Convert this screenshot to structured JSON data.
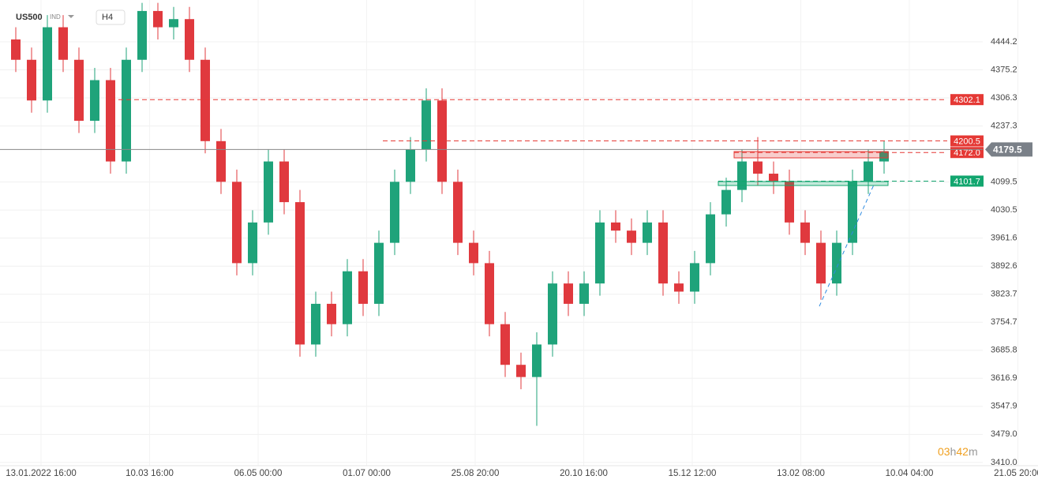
{
  "header": {
    "symbol": "US500",
    "market": "IND",
    "interval": "H4"
  },
  "chart_data": {
    "type": "candlestick",
    "up_color": "#1fa37a",
    "down_color": "#e0393e",
    "open": [
      4450,
      4400,
      4300,
      4480,
      4400,
      4250,
      4350,
      4150,
      4400,
      4520,
      4480,
      4500,
      4400,
      4200,
      4100,
      3900,
      4000,
      4150,
      4050,
      3700,
      3800,
      3750,
      3880,
      3800,
      3950,
      4100,
      4180,
      4300,
      4100,
      3950,
      3900,
      3750,
      3650,
      3620,
      3700,
      3850,
      3800,
      3850,
      4000,
      3980,
      3950,
      4000,
      3850,
      3830,
      3900,
      4020,
      4080,
      4150,
      4120,
      4100,
      4000,
      3950,
      3850,
      3950,
      4100,
      4150
    ],
    "high": [
      4480,
      4430,
      4510,
      4510,
      4430,
      4380,
      4380,
      4430,
      4540,
      4540,
      4530,
      4530,
      4430,
      4230,
      4130,
      4030,
      4180,
      4180,
      4080,
      3830,
      3830,
      3910,
      3910,
      3980,
      4130,
      4210,
      4330,
      4330,
      4130,
      3980,
      3930,
      3780,
      3680,
      3730,
      3880,
      3880,
      3880,
      4030,
      4030,
      4010,
      4030,
      4030,
      3880,
      3930,
      4050,
      4110,
      4180,
      4210,
      4150,
      4130,
      4030,
      3980,
      3980,
      4130,
      4180,
      4200
    ],
    "low": [
      4370,
      4270,
      4270,
      4370,
      4220,
      4220,
      4120,
      4120,
      4370,
      4450,
      4450,
      4370,
      4170,
      4070,
      3870,
      3870,
      3970,
      4020,
      3670,
      3670,
      3720,
      3720,
      3770,
      3770,
      3920,
      4070,
      4150,
      4070,
      3920,
      3870,
      3720,
      3620,
      3590,
      3500,
      3670,
      3770,
      3770,
      3820,
      3950,
      3920,
      3920,
      3820,
      3800,
      3800,
      3870,
      3990,
      4050,
      4090,
      4070,
      3970,
      3920,
      3810,
      3820,
      3920,
      4070,
      4120
    ],
    "close": [
      4400,
      4300,
      4480,
      4400,
      4250,
      4350,
      4150,
      4400,
      4520,
      4480,
      4500,
      4400,
      4200,
      4100,
      3900,
      4000,
      4150,
      4050,
      3700,
      3800,
      3750,
      3880,
      3800,
      3950,
      4100,
      4180,
      4300,
      4100,
      3950,
      3900,
      3750,
      3650,
      3620,
      3700,
      3850,
      3800,
      3850,
      4000,
      3980,
      3950,
      4000,
      3850,
      3830,
      3900,
      4020,
      4080,
      4150,
      4120,
      4100,
      4000,
      3950,
      3850,
      3950,
      4100,
      4150,
      4175
    ],
    "categories": [
      "13.01.2022 16:00",
      "10.03 16:00",
      "06.05 00:00",
      "01.07 00:00",
      "25.08 20:00",
      "20.10 16:00",
      "15.12 12:00",
      "13.02 08:00",
      "10.04 04:00",
      "21.05 20:00"
    ],
    "ylim": [
      3402,
      4547
    ],
    "yticks": [
      {
        "value": 3410.0,
        "label": "3410.0"
      },
      {
        "value": 3479.0,
        "label": "3479.0"
      },
      3547.9,
      3616.9,
      3685.8,
      3754.7,
      3823.7,
      3892.6,
      3961.6,
      4030.5,
      4099.5,
      4237.3,
      4306.3,
      4375.2,
      4444.2
    ],
    "levels": [
      {
        "value": 4302.1,
        "color": "#e53935"
      },
      {
        "value": 4200.5,
        "color": "#e53935"
      },
      {
        "value": {
          "value": 4172.0,
          "label": "4172.0"
        },
        "color": "#e53935"
      },
      {
        "value": 4101.7,
        "color": "#12a66f"
      }
    ],
    "last_price": 4179.5,
    "timer": [
      "03",
      "h",
      "42",
      "m"
    ],
    "grid": true
  }
}
